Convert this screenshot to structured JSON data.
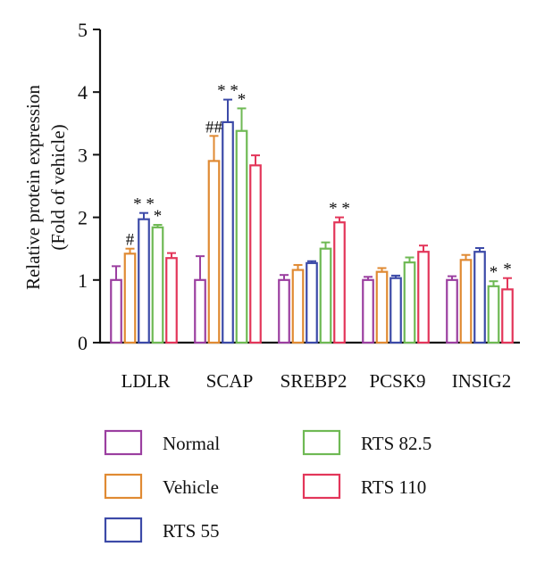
{
  "chart_data": {
    "type": "bar",
    "title": "",
    "ylabel_lines": [
      "Relative protein expression",
      "(Fold of vehicle)"
    ],
    "xlabel": "",
    "ylim": [
      0,
      5
    ],
    "yticks": [
      0,
      1,
      2,
      3,
      4,
      5
    ],
    "grid": false,
    "legend_position": "bottom",
    "categories": [
      "LDLR",
      "SCAP",
      "SREBP2",
      "PCSK9",
      "INSIG2"
    ],
    "series": [
      {
        "name": "Normal",
        "color": "#9b3fa0",
        "values": [
          1.0,
          1.0,
          1.0,
          1.0,
          1.0
        ],
        "errors": [
          0.22,
          0.38,
          0.08,
          0.05,
          0.06
        ]
      },
      {
        "name": "Vehicle",
        "color": "#e08a33",
        "values": [
          1.42,
          2.9,
          1.16,
          1.13,
          1.32
        ],
        "errors": [
          0.08,
          0.4,
          0.08,
          0.06,
          0.08
        ]
      },
      {
        "name": "RTS 55",
        "color": "#3c4aa8",
        "values": [
          1.97,
          3.52,
          1.27,
          1.03,
          1.45
        ],
        "errors": [
          0.1,
          0.36,
          0.03,
          0.04,
          0.06
        ]
      },
      {
        "name": "RTS 82.5",
        "color": "#6fb954",
        "values": [
          1.84,
          3.38,
          1.5,
          1.28,
          0.9
        ],
        "errors": [
          0.04,
          0.36,
          0.1,
          0.08,
          0.08
        ]
      },
      {
        "name": "RTS 110",
        "color": "#e3365a",
        "values": [
          1.35,
          2.83,
          1.92,
          1.45,
          0.85
        ],
        "errors": [
          0.08,
          0.16,
          0.08,
          0.1,
          0.18
        ]
      }
    ],
    "annotations": [
      {
        "category": 0,
        "series": 1,
        "text": "#"
      },
      {
        "category": 0,
        "series": 2,
        "text": "* *"
      },
      {
        "category": 0,
        "series": 3,
        "text": "*"
      },
      {
        "category": 1,
        "series": 1,
        "text": "##"
      },
      {
        "category": 1,
        "series": 2,
        "text": "* *"
      },
      {
        "category": 1,
        "series": 3,
        "text": "*"
      },
      {
        "category": 2,
        "series": 4,
        "text": "* *"
      },
      {
        "category": 4,
        "series": 3,
        "text": "*"
      },
      {
        "category": 4,
        "series": 4,
        "text": "*"
      }
    ]
  }
}
